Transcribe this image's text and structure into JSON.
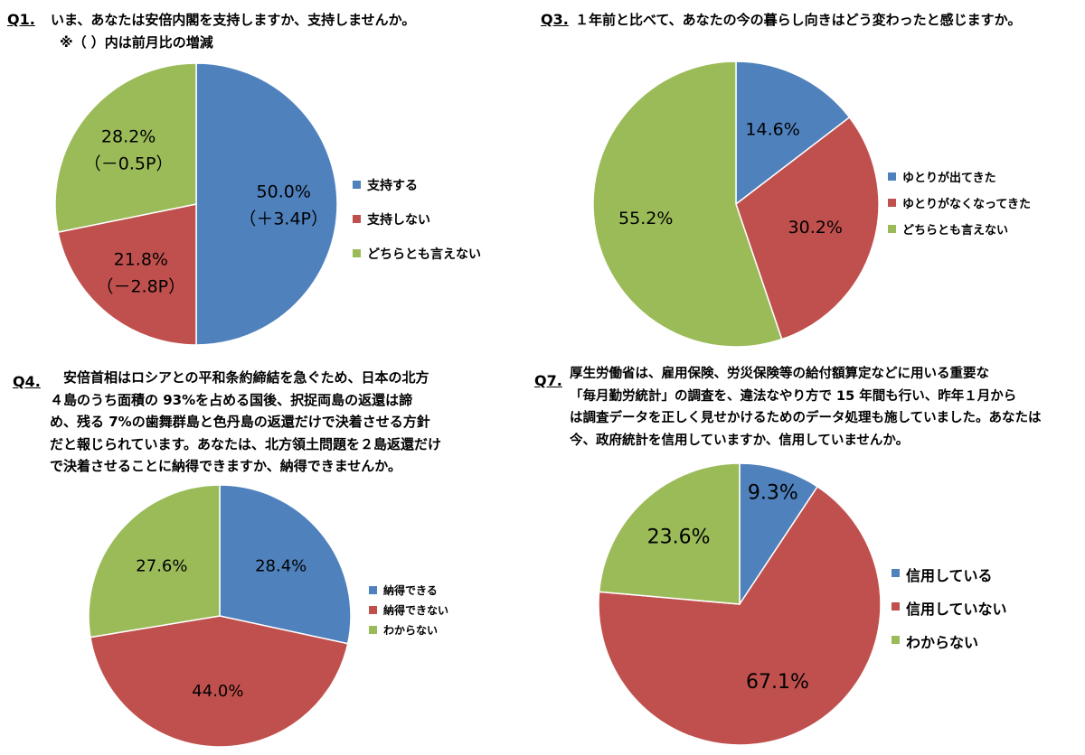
{
  "colors": {
    "blue": "#4F81BD",
    "red": "#C0504D",
    "green": "#9BBB59"
  },
  "chart_data": [
    {
      "id": "q1",
      "type": "pie",
      "number": "Q1.",
      "title_lines": [
        "いま、あなたは安倍内閣を支持しますか、支持しませんか。",
        "※（ ）内は前月比の増減"
      ],
      "slices": [
        {
          "label": "支持する",
          "value": 50.0,
          "text": "50.0%",
          "change": "（＋3.4P）",
          "color": "#4F81BD"
        },
        {
          "label": "支持しない",
          "value": 21.8,
          "text": "21.8%",
          "change": "（－2.8P）",
          "color": "#C0504D"
        },
        {
          "label": "どちらとも言えない",
          "value": 28.2,
          "text": "28.2%",
          "change": "（－0.5P）",
          "color": "#9BBB59"
        }
      ],
      "legend_placement": "right"
    },
    {
      "id": "q3",
      "type": "pie",
      "number": "Q3.",
      "title_lines": [
        "１年前と比べて、あなたの今の暮らし向きはどう変わったと感じますか。"
      ],
      "slices": [
        {
          "label": "ゆとりが出てきた",
          "value": 14.6,
          "text": "14.6%",
          "color": "#4F81BD"
        },
        {
          "label": "ゆとりがなくなってきた",
          "value": 30.2,
          "text": "30.2%",
          "color": "#C0504D"
        },
        {
          "label": "どちらとも言えない",
          "value": 55.2,
          "text": "55.2%",
          "color": "#9BBB59"
        }
      ],
      "legend_placement": "right"
    },
    {
      "id": "q4",
      "type": "pie",
      "number": "Q4.",
      "title_lines": [
        "　安倍首相はロシアとの平和条約締結を急ぐため、日本の北方",
        "４島のうち面積の 93%を占める国後、択捉両島の返還は諦",
        "め、残る 7%の歯舞群島と色丹島の返還だけで決着させる方針",
        "だと報じられています。あなたは、北方領土問題を２島返還だけ",
        "で決着させることに納得できますか、納得できませんか。"
      ],
      "slices": [
        {
          "label": "納得できる",
          "value": 28.4,
          "text": "28.4%",
          "color": "#4F81BD"
        },
        {
          "label": "納得できない",
          "value": 44.0,
          "text": "44.0%",
          "color": "#C0504D"
        },
        {
          "label": "わからない",
          "value": 27.6,
          "text": "27.6%",
          "color": "#9BBB59"
        }
      ],
      "legend_placement": "right"
    },
    {
      "id": "q7",
      "type": "pie",
      "number": "Q7.",
      "title_lines": [
        "厚生労働省は、雇用保険、労災保険等の給付額算定などに用いる重要な",
        "「毎月勤労統計」の調査を、違法なやり方で 15 年間も行い、昨年１月から",
        "は調査データを正しく見せかけるためのデータ処理も施していました。あなたは",
        "今、政府統計を信用していますか、信用していませんか。"
      ],
      "slices": [
        {
          "label": "信用している",
          "value": 9.3,
          "text": "9.3%",
          "color": "#4F81BD"
        },
        {
          "label": "信用していない",
          "value": 67.1,
          "text": "67.1%",
          "color": "#C0504D"
        },
        {
          "label": "わからない",
          "value": 23.6,
          "text": "23.6%",
          "color": "#9BBB59"
        }
      ],
      "legend_placement": "right"
    }
  ]
}
